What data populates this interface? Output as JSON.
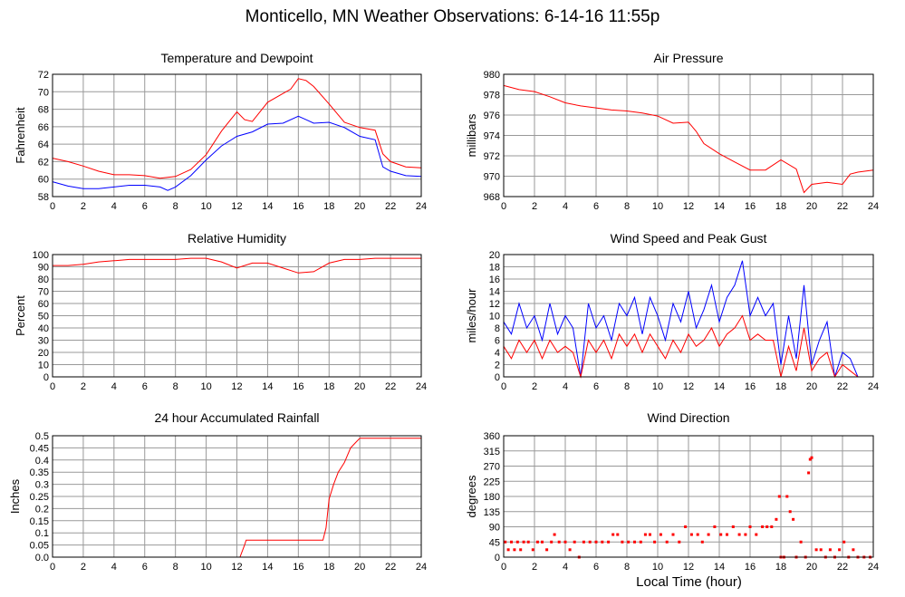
{
  "title": "Monticello, MN Weather Observations: 6-14-16 11:55p",
  "x_axis_label": "Local Time (hour)",
  "colors": {
    "red": "#ff0000",
    "blue": "#0000ff",
    "grid": "#999999"
  },
  "chart_data": [
    {
      "id": "temp",
      "type": "line",
      "title": "Temperature and Dewpoint",
      "ylabel": "Fahrenheit",
      "xlim": [
        0,
        24
      ],
      "ylim": [
        58,
        72
      ],
      "xticks": [
        0,
        2,
        4,
        6,
        8,
        10,
        12,
        14,
        16,
        18,
        20,
        22,
        24
      ],
      "yticks": [
        58,
        60,
        62,
        64,
        66,
        68,
        70,
        72
      ],
      "grid": true,
      "series": [
        {
          "color": "#ff0000",
          "x": [
            0,
            1,
            2,
            3,
            4,
            5,
            6,
            7,
            8,
            9,
            10,
            11,
            12,
            12.5,
            13,
            14,
            15,
            15.5,
            16,
            16.5,
            17,
            18,
            19,
            20,
            21,
            21.5,
            22,
            23,
            24
          ],
          "y": [
            62.4,
            62,
            61.5,
            60.9,
            60.5,
            60.5,
            60.4,
            60.1,
            60.3,
            61.1,
            62.8,
            65.5,
            67.7,
            66.8,
            66.6,
            68.8,
            69.8,
            70.3,
            71.5,
            71.3,
            70.6,
            68.6,
            66.5,
            65.9,
            65.6,
            62.9,
            62,
            61.4,
            61.3
          ]
        },
        {
          "color": "#0000ff",
          "x": [
            0,
            1,
            2,
            3,
            4,
            5,
            6,
            7,
            7.5,
            8,
            9,
            10,
            11,
            12,
            13,
            14,
            15,
            16,
            16.5,
            17,
            18,
            19,
            20,
            21,
            21.5,
            22,
            23,
            24
          ],
          "y": [
            59.7,
            59.2,
            58.9,
            58.9,
            59.1,
            59.3,
            59.3,
            59.1,
            58.7,
            59.1,
            60.4,
            62.2,
            63.8,
            64.9,
            65.4,
            66.3,
            66.4,
            67.2,
            66.8,
            66.4,
            66.5,
            65.9,
            64.9,
            64.5,
            61.4,
            60.9,
            60.4,
            60.3
          ]
        }
      ]
    },
    {
      "id": "pressure",
      "type": "line",
      "title": "Air Pressure",
      "ylabel": "millibars",
      "xlim": [
        0,
        24
      ],
      "ylim": [
        968,
        980
      ],
      "xticks": [
        0,
        2,
        4,
        6,
        8,
        10,
        12,
        14,
        16,
        18,
        20,
        22,
        24
      ],
      "yticks": [
        968,
        970,
        972,
        974,
        976,
        978,
        980
      ],
      "grid": true,
      "series": [
        {
          "color": "#ff0000",
          "x": [
            0,
            1,
            2,
            3,
            4,
            5,
            6,
            7,
            8,
            9,
            10,
            11,
            12,
            12.5,
            13,
            14,
            15,
            16,
            17,
            18,
            19,
            19.5,
            20,
            21,
            22,
            22.5,
            23,
            24
          ],
          "y": [
            978.9,
            978.5,
            978.3,
            977.8,
            977.2,
            976.9,
            976.7,
            976.5,
            976.4,
            976.2,
            975.9,
            975.2,
            975.3,
            974.4,
            973.2,
            972.2,
            971.4,
            970.6,
            970.6,
            971.6,
            970.7,
            968.4,
            969.2,
            969.4,
            969.2,
            970.2,
            970.4,
            970.6
          ]
        }
      ]
    },
    {
      "id": "humidity",
      "type": "line",
      "title": "Relative Humidity",
      "ylabel": "Percent",
      "xlim": [
        0,
        24
      ],
      "ylim": [
        0,
        100
      ],
      "xticks": [
        0,
        2,
        4,
        6,
        8,
        10,
        12,
        14,
        16,
        18,
        20,
        22,
        24
      ],
      "yticks": [
        0,
        10,
        20,
        30,
        40,
        50,
        60,
        70,
        80,
        90,
        100
      ],
      "grid": true,
      "series": [
        {
          "color": "#ff0000",
          "x": [
            0,
            1,
            2,
            3,
            4,
            5,
            6,
            7,
            8,
            9,
            10,
            11,
            12,
            13,
            14,
            15,
            16,
            17,
            18,
            19,
            20,
            21,
            22,
            23,
            24
          ],
          "y": [
            91,
            91,
            92,
            94,
            95,
            96,
            96,
            96,
            96,
            97,
            97,
            94,
            89,
            93,
            93,
            89,
            85,
            86,
            93,
            96,
            96,
            97,
            97,
            97,
            97
          ]
        }
      ]
    },
    {
      "id": "wind",
      "type": "line",
      "title": "Wind Speed and Peak Gust",
      "ylabel": "miles/hour",
      "xlim": [
        0,
        24
      ],
      "ylim": [
        0,
        20
      ],
      "xticks": [
        0,
        2,
        4,
        6,
        8,
        10,
        12,
        14,
        16,
        18,
        20,
        22,
        24
      ],
      "yticks": [
        0,
        2,
        4,
        6,
        8,
        10,
        12,
        14,
        16,
        18,
        20
      ],
      "grid": true,
      "series": [
        {
          "color": "#0000ff",
          "x": [
            0,
            0.5,
            1,
            1.5,
            2,
            2.5,
            3,
            3.5,
            4,
            4.5,
            5,
            5.5,
            6,
            6.5,
            7,
            7.5,
            8,
            8.5,
            9,
            9.5,
            10,
            10.5,
            11,
            11.5,
            12,
            12.5,
            13,
            13.5,
            14,
            14.5,
            15,
            15.5,
            16,
            16.5,
            17,
            17.5,
            18,
            18.5,
            19,
            19.5,
            20,
            20.5,
            21,
            21.5,
            22,
            22.5,
            23,
            24
          ],
          "y": [
            9,
            7,
            12,
            8,
            10,
            6,
            12,
            7,
            10,
            8,
            0,
            12,
            8,
            10,
            6,
            12,
            10,
            13,
            7,
            13,
            10,
            6,
            12,
            9,
            14,
            8,
            11,
            15,
            9,
            13,
            15,
            19,
            10,
            13,
            10,
            12,
            2,
            10,
            3,
            15,
            2,
            6,
            9,
            0,
            4,
            3,
            0,
            0
          ]
        },
        {
          "color": "#ff0000",
          "x": [
            0,
            0.5,
            1,
            1.5,
            2,
            2.5,
            3,
            3.5,
            4,
            4.5,
            5,
            5.5,
            6,
            6.5,
            7,
            7.5,
            8,
            8.5,
            9,
            9.5,
            10,
            10.5,
            11,
            11.5,
            12,
            12.5,
            13,
            13.5,
            14,
            14.5,
            15,
            15.5,
            16,
            16.5,
            17,
            17.5,
            18,
            18.5,
            19,
            19.5,
            20,
            20.5,
            21,
            21.5,
            22,
            22.5,
            23,
            24
          ],
          "y": [
            5,
            3,
            6,
            4,
            6,
            3,
            6,
            4,
            5,
            4,
            0,
            6,
            4,
            6,
            3,
            7,
            5,
            7,
            4,
            7,
            5,
            3,
            6,
            4,
            7,
            5,
            6,
            8,
            5,
            7,
            8,
            10,
            6,
            7,
            6,
            6,
            0,
            5,
            1,
            8,
            1,
            3,
            4,
            0,
            2,
            1,
            0,
            0
          ]
        }
      ]
    },
    {
      "id": "rain",
      "type": "line",
      "title": "24 hour Accumulated Rainfall",
      "ylabel": "Inches",
      "xlim": [
        0,
        24
      ],
      "ylim": [
        0,
        0.5
      ],
      "xticks": [
        0,
        2,
        4,
        6,
        8,
        10,
        12,
        14,
        16,
        18,
        20,
        22,
        24
      ],
      "yticks": [
        0.0,
        0.05,
        0.1,
        0.15,
        0.2,
        0.25,
        0.3,
        0.35,
        0.4,
        0.45,
        0.5
      ],
      "ytick_labels": [
        "0.0",
        "0.05",
        "0.1",
        "0.15",
        "0.2",
        "0.25",
        "0.3",
        "0.35",
        "0.4",
        "0.45",
        "0.5"
      ],
      "grid": true,
      "series": [
        {
          "color": "#ff0000",
          "x": [
            0,
            12.2,
            12.5,
            12.6,
            17.6,
            17.8,
            18,
            18.3,
            18.6,
            19,
            19.4,
            19.7,
            20,
            24
          ],
          "y": [
            0,
            0,
            0.05,
            0.07,
            0.07,
            0.12,
            0.24,
            0.3,
            0.35,
            0.39,
            0.45,
            0.47,
            0.49,
            0.49
          ]
        }
      ]
    },
    {
      "id": "direction",
      "type": "scatter",
      "title": "Wind Direction",
      "ylabel": "degrees",
      "xlim": [
        0,
        24
      ],
      "ylim": [
        0,
        360
      ],
      "xticks": [
        0,
        2,
        4,
        6,
        8,
        10,
        12,
        14,
        16,
        18,
        20,
        22,
        24
      ],
      "yticks": [
        0,
        45,
        90,
        135,
        180,
        225,
        270,
        315,
        360
      ],
      "grid": true,
      "series": [
        {
          "color": "#ff0000",
          "points": [
            [
              0.1,
              45
            ],
            [
              0.3,
              22
            ],
            [
              0.5,
              45
            ],
            [
              0.7,
              22
            ],
            [
              0.9,
              45
            ],
            [
              1.1,
              22
            ],
            [
              1.3,
              45
            ],
            [
              1.6,
              45
            ],
            [
              1.9,
              22
            ],
            [
              2.2,
              45
            ],
            [
              2.5,
              45
            ],
            [
              2.8,
              22
            ],
            [
              3.1,
              45
            ],
            [
              3.3,
              67
            ],
            [
              3.6,
              45
            ],
            [
              4.0,
              45
            ],
            [
              4.3,
              22
            ],
            [
              4.6,
              45
            ],
            [
              4.9,
              0
            ],
            [
              5.2,
              45
            ],
            [
              5.6,
              45
            ],
            [
              6.0,
              45
            ],
            [
              6.4,
              45
            ],
            [
              6.8,
              45
            ],
            [
              7.1,
              67
            ],
            [
              7.4,
              67
            ],
            [
              7.7,
              45
            ],
            [
              8.1,
              45
            ],
            [
              8.5,
              45
            ],
            [
              8.9,
              45
            ],
            [
              9.2,
              67
            ],
            [
              9.5,
              67
            ],
            [
              9.8,
              45
            ],
            [
              10.2,
              67
            ],
            [
              10.6,
              45
            ],
            [
              11.0,
              67
            ],
            [
              11.4,
              45
            ],
            [
              11.8,
              90
            ],
            [
              12.2,
              67
            ],
            [
              12.6,
              67
            ],
            [
              12.9,
              45
            ],
            [
              13.3,
              67
            ],
            [
              13.7,
              90
            ],
            [
              14.1,
              67
            ],
            [
              14.5,
              67
            ],
            [
              14.9,
              90
            ],
            [
              15.3,
              67
            ],
            [
              15.7,
              67
            ],
            [
              16.0,
              90
            ],
            [
              16.4,
              67
            ],
            [
              16.8,
              90
            ],
            [
              17.1,
              90
            ],
            [
              17.4,
              90
            ],
            [
              17.7,
              112
            ],
            [
              17.9,
              180
            ],
            [
              18.0,
              0
            ],
            [
              18.2,
              0
            ],
            [
              18.4,
              180
            ],
            [
              18.6,
              135
            ],
            [
              18.8,
              112
            ],
            [
              19.0,
              0
            ],
            [
              19.3,
              45
            ],
            [
              19.6,
              0
            ],
            [
              19.8,
              250
            ],
            [
              19.9,
              290
            ],
            [
              20.0,
              295
            ],
            [
              20.3,
              22
            ],
            [
              20.6,
              22
            ],
            [
              20.9,
              0
            ],
            [
              21.2,
              22
            ],
            [
              21.5,
              0
            ],
            [
              21.8,
              22
            ],
            [
              22.1,
              45
            ],
            [
              22.4,
              0
            ],
            [
              22.7,
              22
            ],
            [
              23.0,
              0
            ],
            [
              23.4,
              0
            ],
            [
              23.8,
              0
            ]
          ]
        }
      ]
    }
  ]
}
